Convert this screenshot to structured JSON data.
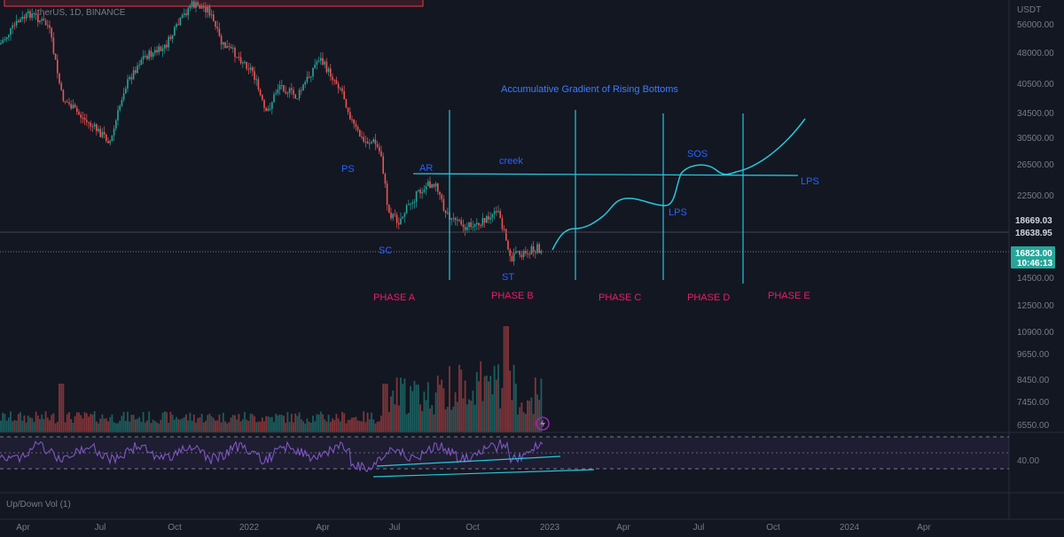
{
  "header": {
    "symbol_partial": "therUS, 1D, BINANCE",
    "currency": "USDT"
  },
  "chart_data": {
    "type": "candlestick",
    "x_ticks": [
      "Apr",
      "Jul",
      "Oct",
      "2022",
      "Apr",
      "Jul",
      "Oct",
      "2023",
      "Apr",
      "Jul",
      "Oct",
      "2024",
      "Apr"
    ],
    "y_ticks": [
      "56000.00",
      "48000.00",
      "40500.00",
      "34500.00",
      "30500.00",
      "26500.00",
      "22500.00",
      "18669.03",
      "18638.95",
      "16823.00",
      "14500.00",
      "12500.00",
      "10900.00",
      "9650.00",
      "8450.00",
      "7450.00",
      "6550.00"
    ],
    "current_price": "16823.00",
    "countdown": "10:46:13",
    "price_line_1": "18669.03",
    "price_line_2": "18638.95",
    "title_annotation": "Accumulative Gradient of Rising Bottoms",
    "labels": {
      "ps": "PS",
      "sc": "SC",
      "ar": "AR",
      "st": "ST",
      "creek": "creek",
      "sos": "SOS",
      "lps1": "LPS",
      "lps2": "LPS"
    },
    "phases": [
      "PHASE A",
      "PHASE B",
      "PHASE C",
      "PHASE D",
      "PHASE E"
    ],
    "rsi_level": "40.00",
    "indicator_label": "Up/Down Vol (1)",
    "colors": {
      "background": "#131722",
      "up": "#26a69a",
      "down": "#ef5350",
      "projection": "#26c6da",
      "rsi": "#7e57c2",
      "phase_text": "#e91e63",
      "annotation_text": "#2962ff",
      "badge_price": "#26a69a",
      "badge_current": "#26a69a"
    }
  }
}
